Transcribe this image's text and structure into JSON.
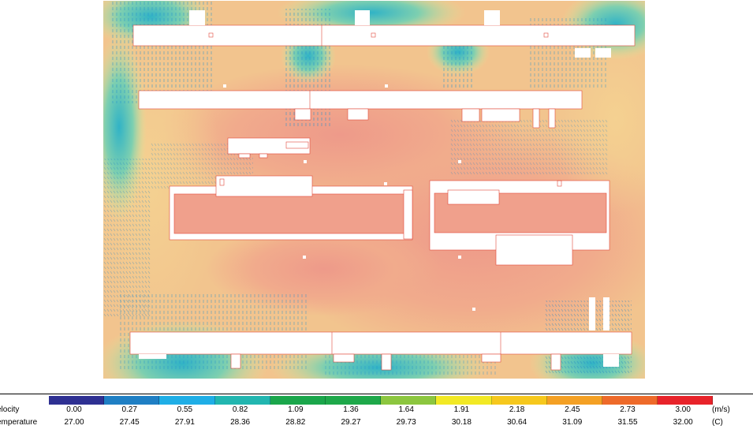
{
  "legend": {
    "velocity_label": "elocity",
    "temperature_label": "emperature",
    "velocity_unit": "(m/s)",
    "temperature_unit": "(C)",
    "velocity_ticks": [
      "0.00",
      "0.27",
      "0.55",
      "0.82",
      "1.09",
      "1.36",
      "1.64",
      "1.91",
      "2.18",
      "2.45",
      "2.73",
      "3.00"
    ],
    "temperature_ticks": [
      "27.00",
      "27.45",
      "27.91",
      "28.36",
      "28.82",
      "29.27",
      "29.73",
      "30.18",
      "30.64",
      "31.09",
      "31.55",
      "32.00"
    ],
    "colors": [
      "#2e3092",
      "#1f7fc4",
      "#1faee6",
      "#22b6b0",
      "#1aa64b",
      "#1ea84a",
      "#8cc63f",
      "#f2e925",
      "#f6c81d",
      "#f4a024",
      "#ee6a2a",
      "#e8232a"
    ]
  },
  "plot": {
    "field_colors": {
      "hot": "#f0a08c",
      "warm": "#f3c487",
      "mild": "#f2dd8e",
      "cool": "#9ed4a4",
      "cold": "#2fb0c9",
      "obstacle": "#ffffff",
      "outline": "#e24a3b"
    }
  }
}
